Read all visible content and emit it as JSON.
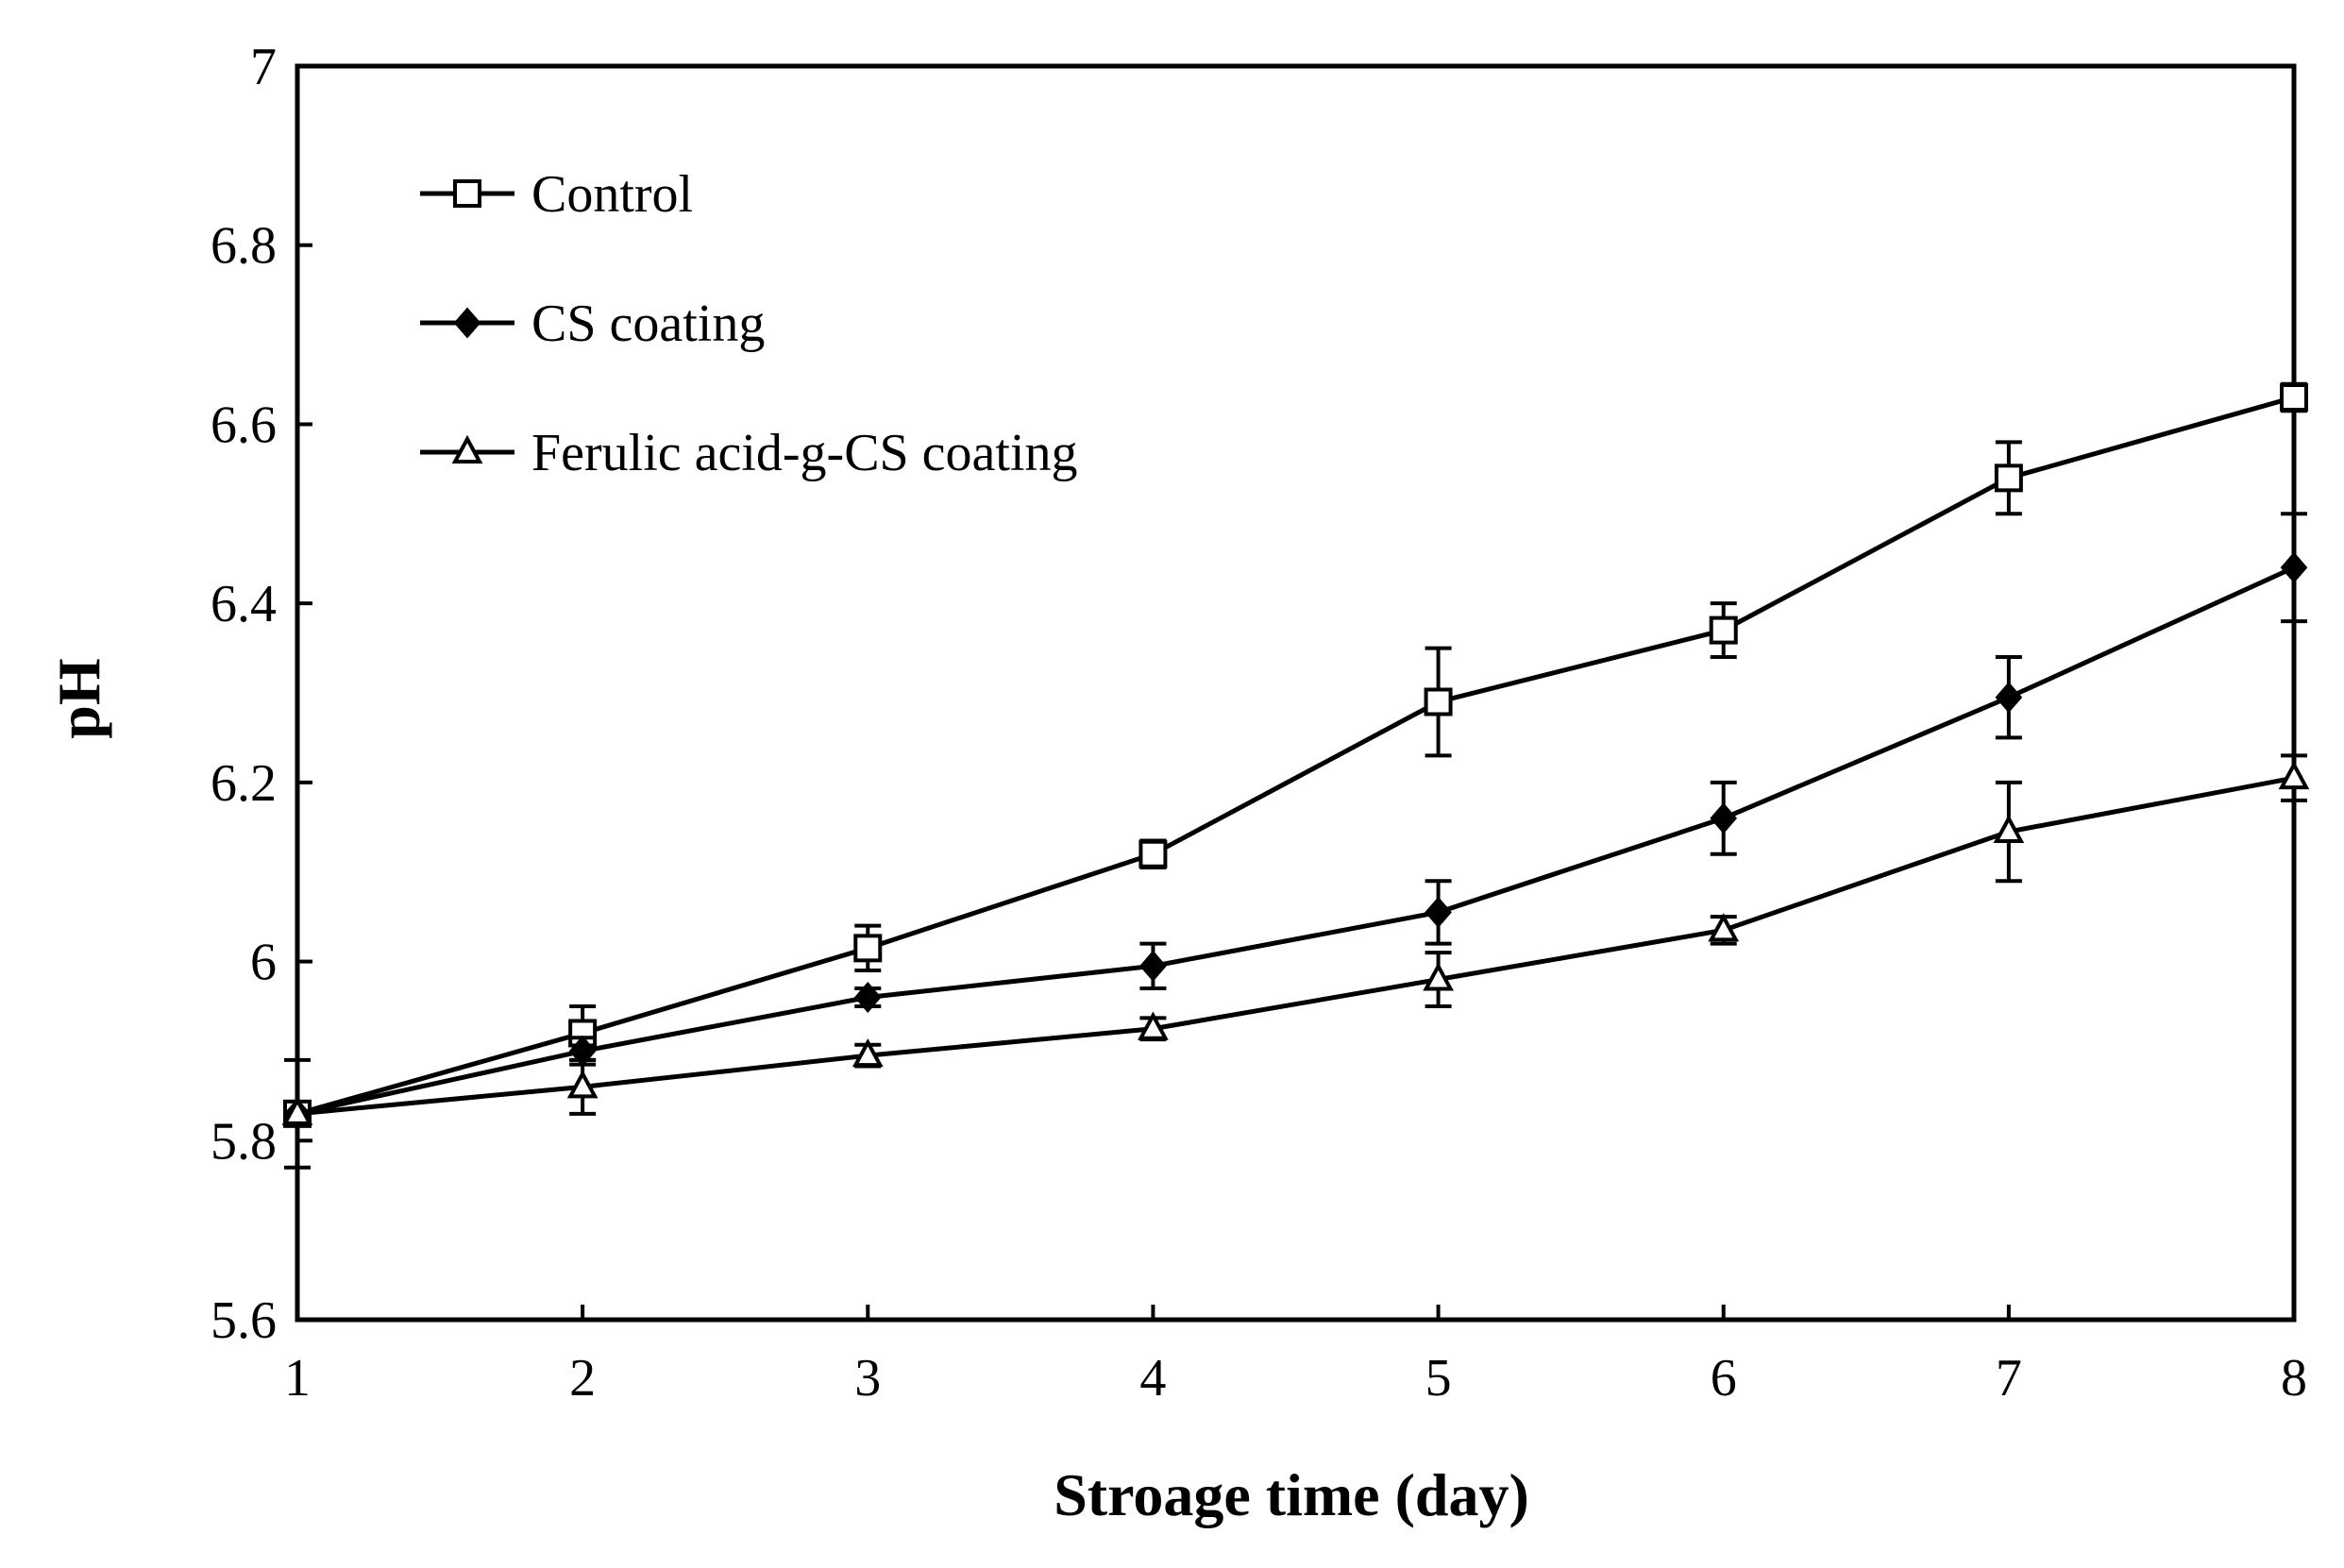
{
  "chart_data": {
    "type": "line",
    "title": "",
    "xlabel": "Stroage time (day)",
    "ylabel": "pH",
    "x": [
      1,
      2,
      3,
      4,
      5,
      6,
      7,
      8
    ],
    "xlim": [
      1,
      8
    ],
    "ylim": [
      5.6,
      7.0
    ],
    "xticks": [
      "1",
      "2",
      "3",
      "4",
      "5",
      "6",
      "7",
      "8"
    ],
    "yticks": [
      "5.6",
      "5.8",
      "6",
      "6.2",
      "6.4",
      "6.6",
      "6.8",
      "7"
    ],
    "grid": false,
    "legend_position": "top-left",
    "series": [
      {
        "name": "Control",
        "marker": "open-square",
        "values": [
          5.83,
          5.92,
          6.015,
          6.12,
          6.29,
          6.37,
          6.54,
          6.63
        ],
        "errors": [
          0.06,
          0.03,
          0.025,
          0.015,
          0.06,
          0.03,
          0.04,
          0.015
        ]
      },
      {
        "name": "CS coating",
        "marker": "filled-diamond",
        "values": [
          5.83,
          5.9,
          5.96,
          5.995,
          6.055,
          6.16,
          6.295,
          6.44
        ],
        "errors": [
          0.0,
          0.015,
          0.01,
          0.025,
          0.035,
          0.04,
          0.045,
          0.06
        ]
      },
      {
        "name": "Ferulic acid-g-CS coating",
        "marker": "open-triangle",
        "values": [
          5.83,
          5.86,
          5.895,
          5.925,
          5.98,
          6.035,
          6.145,
          6.205
        ],
        "errors": [
          0.0,
          0.03,
          0.012,
          0.012,
          0.03,
          0.015,
          0.055,
          0.025
        ]
      }
    ]
  }
}
